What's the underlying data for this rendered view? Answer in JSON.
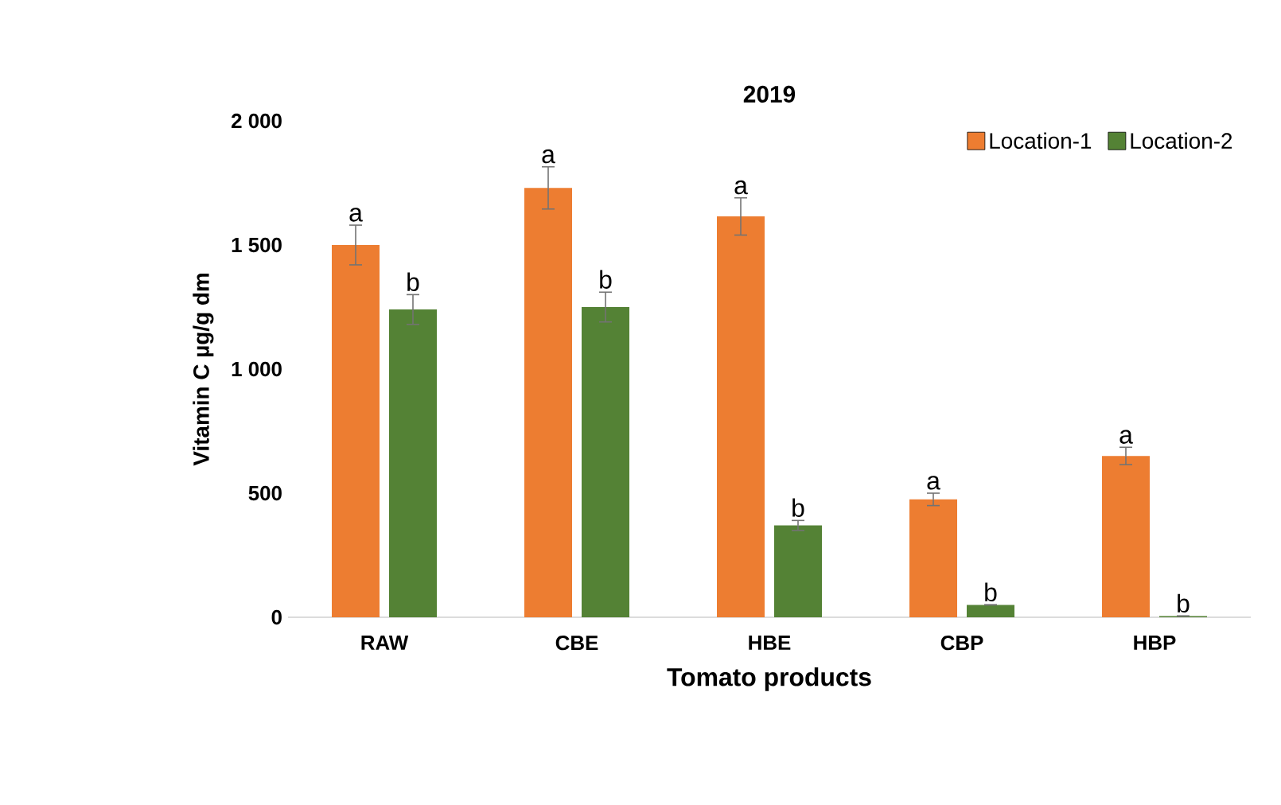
{
  "chart_data": {
    "type": "bar",
    "title": "2019",
    "xlabel": "Tomato products",
    "ylabel": "Vitamin C µg/g dm",
    "categories": [
      "RAW",
      "CBE",
      "HBE",
      "CBP",
      "HBP"
    ],
    "series": [
      {
        "name": "Location-1",
        "color": "#ed7d31",
        "values": [
          1500,
          1730,
          1615,
          475,
          650
        ],
        "errors": [
          80,
          85,
          75,
          25,
          35
        ]
      },
      {
        "name": "Location-2",
        "color": "#548235",
        "values": [
          1240,
          1250,
          370,
          50,
          5
        ],
        "errors": [
          60,
          60,
          20,
          null,
          null
        ]
      }
    ],
    "ylim": [
      0,
      2000
    ],
    "yticks": [
      0,
      500,
      {
        "value": 1000,
        "label": "1 000"
      },
      {
        "value": 1500,
        "label": "1 500"
      },
      {
        "value": 2000,
        "label": "2 000"
      }
    ],
    "grid": false,
    "legend": "top right",
    "annotations": [
      {
        "text": "a",
        "x": "RAW",
        "y": 1500
      },
      {
        "text": "b",
        "x": "RAW",
        "y": 1240
      },
      {
        "text": "a",
        "x": "CBE",
        "y": 1730
      },
      {
        "text": "b",
        "x": "CBE",
        "y": 1250
      },
      {
        "text": "a",
        "x": "HBE",
        "y": 1615
      },
      {
        "text": "b",
        "x": "HBE",
        "y": 370
      },
      {
        "text": "a",
        "x": "CBP",
        "y": 475
      },
      {
        "text": "b",
        "x": "CBP",
        "y": 50
      },
      {
        "text": "a",
        "x": "HBP",
        "y": 650
      },
      {
        "text": "b",
        "x": "HBP",
        "y": 5
      }
    ]
  }
}
